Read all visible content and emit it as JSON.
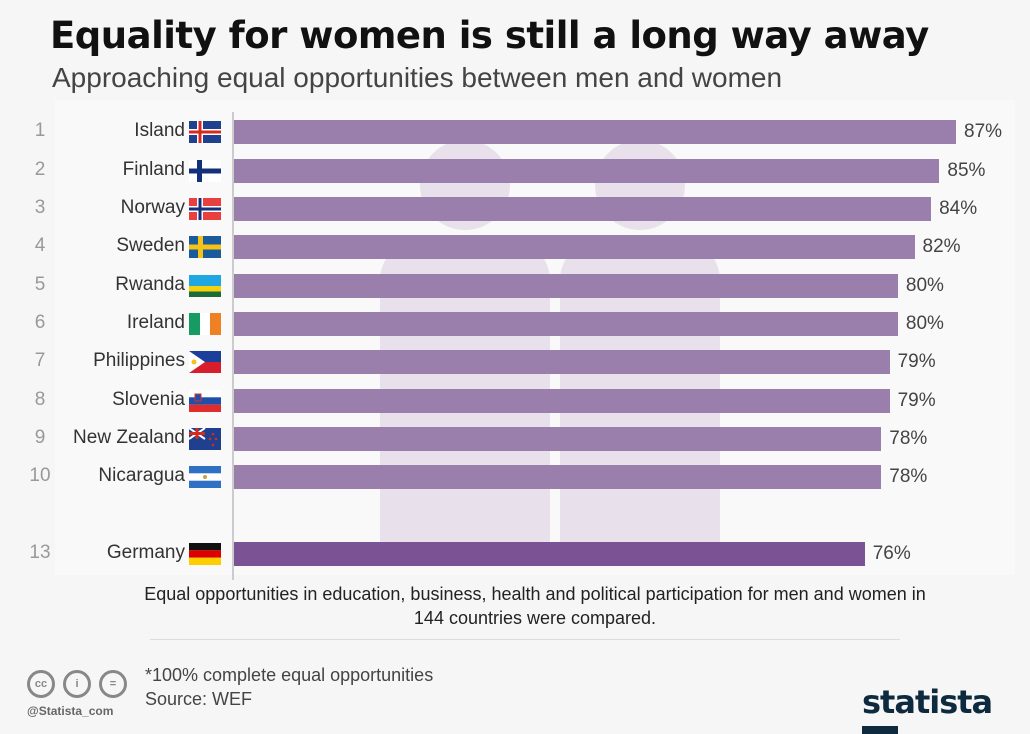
{
  "title": "Equality for women is still a long way away",
  "subtitle": "Approaching equal opportunities between men and women",
  "chart_data": {
    "type": "bar",
    "orientation": "horizontal",
    "ranks": [
      "1",
      "2",
      "3",
      "4",
      "5",
      "6",
      "7",
      "8",
      "9",
      "10",
      "13"
    ],
    "categories": [
      "Island",
      "Finland",
      "Norway",
      "Sweden",
      "Rwanda",
      "Ireland",
      "Philippines",
      "Slovenia",
      "New Zealand",
      "Nicaragua",
      "Germany"
    ],
    "values": [
      87,
      85,
      84,
      82,
      80,
      80,
      79,
      79,
      78,
      78,
      76
    ],
    "labels": [
      "87%",
      "85%",
      "84%",
      "82%",
      "80%",
      "80%",
      "79%",
      "79%",
      "78%",
      "78%",
      "76%"
    ],
    "highlight": "Germany",
    "colors": {
      "bar": "#9a7fad",
      "highlight": "#7b5294"
    },
    "xlim": [
      0,
      100
    ]
  },
  "note": "Equal opportunities in education, business, health and political participation for men and women in 144 countries were compared.",
  "footnote": "*100% complete equal opportunities",
  "source": "Source: WEF",
  "handle": "@Statista_com",
  "brand": "statista"
}
